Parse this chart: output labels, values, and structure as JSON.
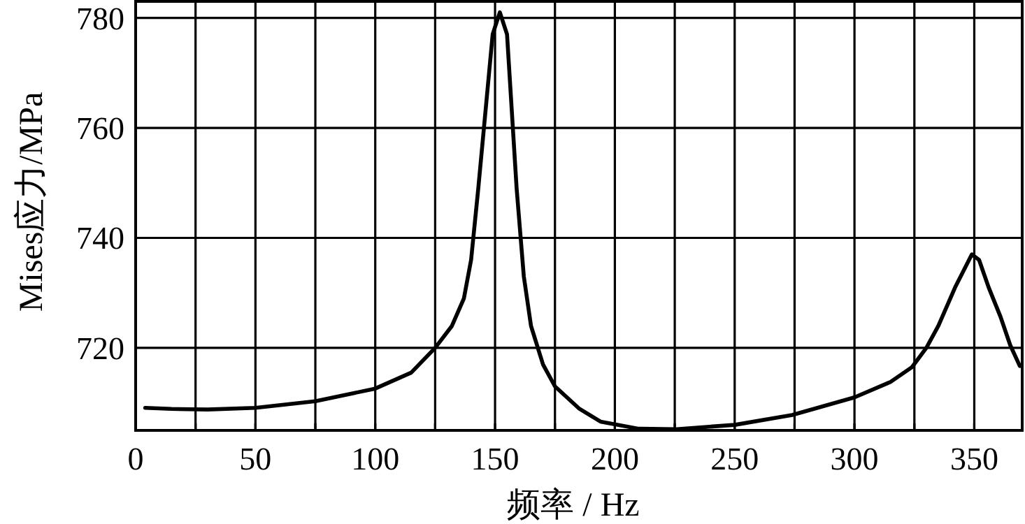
{
  "chart_data": {
    "type": "line",
    "xlabel": "频率 / Hz",
    "ylabel": "Mises应力/MPa",
    "xlim": [
      0,
      370
    ],
    "ylim": [
      705,
      783
    ],
    "xticks": [
      0,
      {
        "value": 25,
        "label": null
      },
      50,
      {
        "value": 75,
        "label": null
      },
      100,
      {
        "value": 125,
        "label": null
      },
      150,
      {
        "value": 175,
        "label": null
      },
      200,
      {
        "value": 225,
        "label": null
      },
      250,
      {
        "value": 275,
        "label": null
      },
      300,
      {
        "value": 325,
        "label": null
      },
      350
    ],
    "yticks": [
      720,
      740,
      760,
      780
    ],
    "grid": true,
    "marker": "none",
    "line_style": "solid",
    "series": [
      {
        "color": "#000000",
        "x": [
          4,
          15,
          30,
          50,
          75,
          100,
          115,
          125,
          132,
          137,
          140,
          143,
          146,
          149,
          152,
          155,
          157,
          159,
          162,
          165,
          170,
          175,
          185,
          194,
          210,
          225,
          250,
          274,
          300,
          315,
          324,
          330,
          335,
          342,
          349,
          352,
          356,
          361,
          365,
          369
        ],
        "values": [
          709.1,
          708.9,
          708.8,
          709.1,
          710.3,
          712.6,
          715.5,
          720,
          724,
          729,
          736,
          749,
          763,
          777,
          781,
          777,
          763,
          749,
          733,
          724,
          717,
          713,
          709,
          706.6,
          705.3,
          705.2,
          706,
          707.8,
          711,
          713.8,
          716.5,
          720,
          724,
          731,
          737,
          736,
          731,
          725.6,
          720.5,
          716.7
        ]
      }
    ]
  }
}
